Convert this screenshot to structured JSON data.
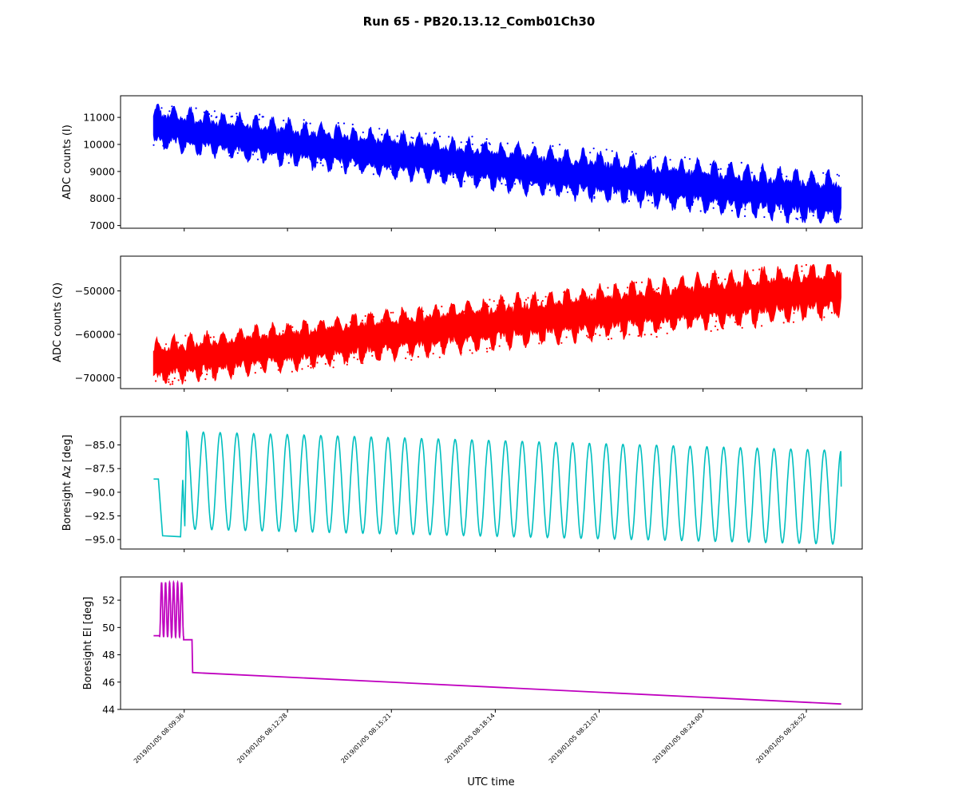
{
  "figure_title": "Run 65 - PB20.13.12_Comb01Ch30",
  "xlabel": "UTC time",
  "x_ticks": [
    "2019/01/05 08:09:36",
    "2019/01/05 08:12:28",
    "2019/01/05 08:15:21",
    "2019/01/05 08:18:14",
    "2019/01/05 08:21:07",
    "2019/01/05 08:24:00",
    "2019/01/05 08:26:52"
  ],
  "colors": {
    "I": "#0000ff",
    "Q": "#ff0000",
    "Az": "#00bfbf",
    "El": "#bf00bf",
    "axes": "#000000",
    "background": "#ffffff"
  },
  "chart_data": [
    {
      "type": "scatter",
      "series": [
        {
          "name": "I",
          "role": "band"
        }
      ],
      "xlabel": "",
      "ylabel": "ADC counts (I)",
      "ylim": [
        6900,
        11800
      ],
      "yticks": [
        7000,
        8000,
        9000,
        10000,
        11000
      ],
      "xlim": [
        "2019/01/05 08:07:50",
        "2019/01/05 08:28:25"
      ],
      "data_range": [
        "2019/01/05 08:08:45",
        "2019/01/05 08:27:50"
      ],
      "trend": {
        "center_start": 10650,
        "center_end": 7950,
        "amplitude_start": 550,
        "amplitude_end": 650,
        "oscillations": 42,
        "max": 11600,
        "min": 7100
      }
    },
    {
      "type": "scatter",
      "series": [
        {
          "name": "Q",
          "role": "band"
        }
      ],
      "xlabel": "",
      "ylabel": "ADC counts (Q)",
      "ylim": [
        -72500,
        -42000
      ],
      "yticks": [
        -70000,
        -60000,
        -50000
      ],
      "xlim": [
        "2019/01/05 08:07:50",
        "2019/01/05 08:28:25"
      ],
      "data_range": [
        "2019/01/05 08:08:45",
        "2019/01/05 08:27:50"
      ],
      "trend": {
        "center_start": -66500,
        "center_end": -49500,
        "amplitude_start": 3500,
        "amplitude_end": 4500,
        "oscillations": 42,
        "max": -44000,
        "min": -71500
      }
    },
    {
      "type": "line",
      "series": [
        {
          "name": "Az"
        }
      ],
      "xlabel": "",
      "ylabel": "Boresight Az [deg]",
      "ylim": [
        -96.0,
        -82.0
      ],
      "yticks": [
        -95.0,
        -92.5,
        -90.0,
        -87.5,
        -85.0
      ],
      "xlim": [
        "2019/01/05 08:07:50",
        "2019/01/05 08:28:25"
      ],
      "segments": [
        {
          "from": "08:08:45",
          "to": "08:08:53",
          "value": -88.6
        },
        {
          "from": "08:08:53",
          "to": "08:09:00",
          "value": -94.6
        },
        {
          "from": "08:09:00",
          "to": "08:09:30",
          "value": -94.7
        },
        {
          "from": "08:09:30",
          "to": "08:09:40",
          "oscillation": true
        },
        {
          "from": "08:09:40",
          "to": "08:27:50",
          "scan": {
            "max_start": -83.6,
            "max_end": -85.6,
            "min_start": -93.9,
            "min_end": -95.5,
            "cycles": 39
          }
        }
      ],
      "end_value": -89.4
    },
    {
      "type": "line",
      "series": [
        {
          "name": "El"
        }
      ],
      "xlabel": "UTC time",
      "ylabel": "Boresight El [deg]",
      "ylim": [
        44.0,
        53.7
      ],
      "yticks": [
        44,
        46,
        48,
        50,
        52
      ],
      "xlim": [
        "2019/01/05 08:07:50",
        "2019/01/05 08:28:25"
      ],
      "segments": [
        {
          "from": "08:08:45",
          "to": "08:08:55",
          "value": 49.4
        },
        {
          "from": "08:08:55",
          "to": "08:09:35",
          "oscillation": {
            "max": 53.3,
            "min": 49.3,
            "cycles": 6
          }
        },
        {
          "from": "08:09:35",
          "to": "08:09:50",
          "value": 49.1
        },
        {
          "from": "08:09:50",
          "to": "08:27:50",
          "linear": [
            46.7,
            44.4
          ]
        }
      ]
    }
  ]
}
